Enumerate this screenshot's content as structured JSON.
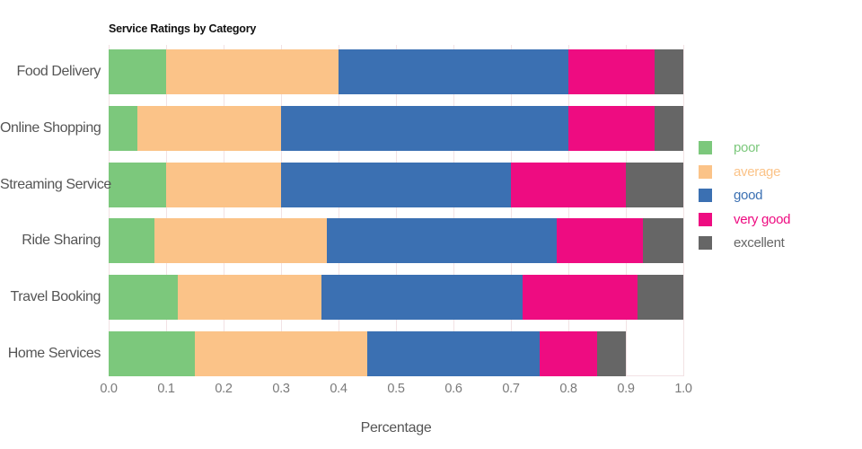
{
  "chart_data": {
    "type": "bar",
    "orientation": "horizontal",
    "stacked": true,
    "title": "Service Ratings by Category",
    "xlabel": "Percentage",
    "ylabel": "",
    "categories": [
      "Food Delivery",
      "Online Shopping",
      "Streaming Service",
      "Ride Sharing",
      "Travel Booking",
      "Home Services"
    ],
    "series": [
      {
        "name": "poor",
        "color": "#7cc87c",
        "values": [
          0.1,
          0.05,
          0.1,
          0.08,
          0.12,
          0.15
        ]
      },
      {
        "name": "average",
        "color": "#fbc388",
        "values": [
          0.3,
          0.25,
          0.2,
          0.3,
          0.25,
          0.3
        ]
      },
      {
        "name": "good",
        "color": "#3b70b2",
        "values": [
          0.4,
          0.5,
          0.4,
          0.4,
          0.35,
          0.3
        ]
      },
      {
        "name": "very good",
        "color": "#ee0c81",
        "values": [
          0.15,
          0.15,
          0.2,
          0.15,
          0.2,
          0.1
        ]
      },
      {
        "name": "excellent",
        "color": "#666666",
        "values": [
          0.05,
          0.05,
          0.1,
          0.07,
          0.08,
          0.05
        ]
      }
    ],
    "xlim": [
      0.0,
      1.0
    ],
    "xticks": [
      "0.0",
      "0.1",
      "0.2",
      "0.3",
      "0.4",
      "0.5",
      "0.6",
      "0.7",
      "0.8",
      "0.9",
      "1.0"
    ],
    "grid": true,
    "grid_color": "#f2e2e4",
    "legend_position": "right",
    "text_colors": {
      "title": "#111111",
      "axis_labels": "#555555",
      "tick_labels": "#7a7a7a"
    }
  }
}
